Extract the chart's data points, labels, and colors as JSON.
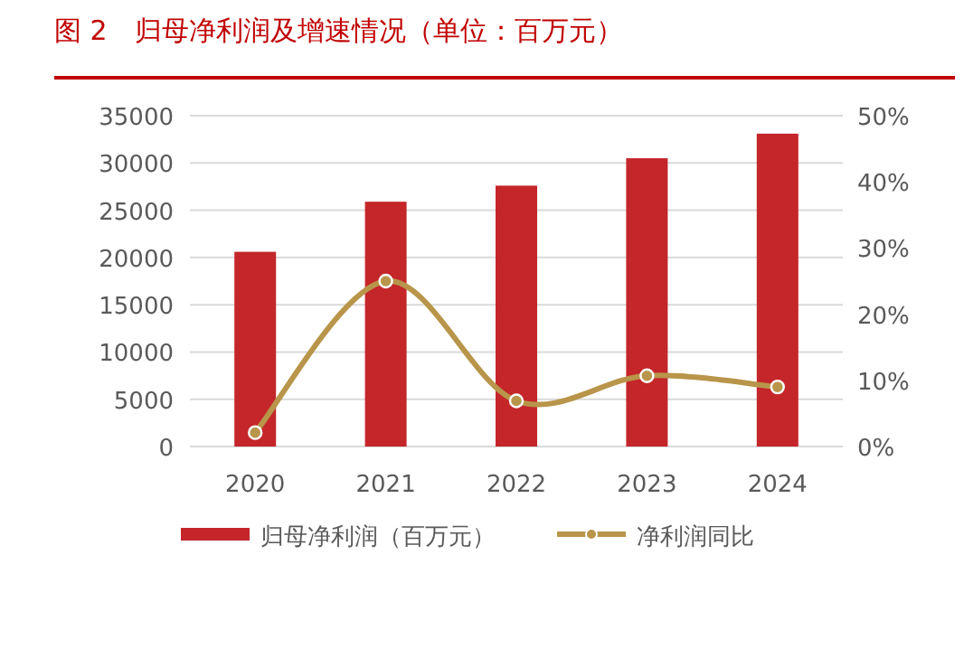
{
  "chart_data": {
    "type": "bar",
    "title": "图 2　归母净利润及增速情况（单位：百万元）",
    "categories": [
      "2020",
      "2021",
      "2022",
      "2023",
      "2024"
    ],
    "series": [
      {
        "name": "归母净利润（百万元）",
        "color": "#c4262a",
        "values": [
          20600,
          25900,
          27600,
          30500,
          33100
        ]
      },
      {
        "name": "净利润同比",
        "type": "line",
        "axis": "y2",
        "color": "#b8954a",
        "marker": "circle",
        "values": [
          2.1,
          25.0,
          6.9,
          10.7,
          9.0
        ]
      }
    ],
    "ylim": [
      0,
      35000
    ],
    "yticks": [
      0,
      5000,
      10000,
      15000,
      20000,
      25000,
      30000,
      35000
    ],
    "y2lim": [
      0,
      50
    ],
    "y2ticks": [
      {
        "value": 0,
        "label": "0%"
      },
      {
        "value": 10,
        "label": "10%"
      },
      {
        "value": 20,
        "label": "20%"
      },
      {
        "value": 30,
        "label": "30%"
      },
      {
        "value": 40,
        "label": "40%"
      },
      {
        "value": 50,
        "label": "50%"
      }
    ],
    "grid": "y",
    "legend": "bottom"
  }
}
